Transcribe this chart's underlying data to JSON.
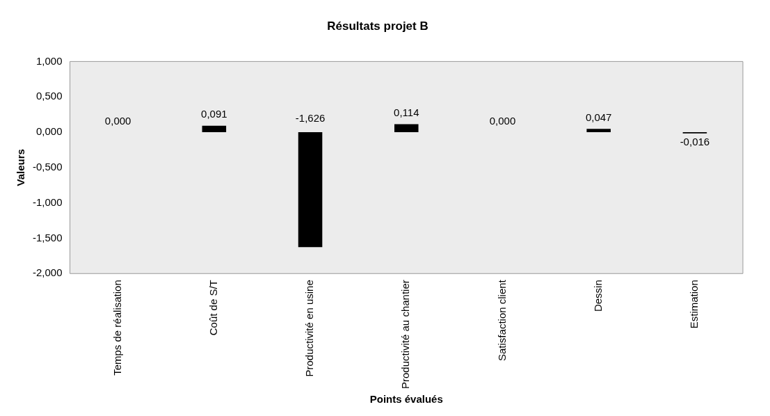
{
  "chart_data": {
    "type": "bar",
    "title": "Résultats projet B",
    "xlabel": "Points évalués",
    "ylabel": "Valeurs",
    "categories": [
      "Temps de réalisation",
      "Coût de S/T",
      "Productivité en usine",
      "Productivité au chantier",
      "Satisfaction client",
      "Dessin",
      "Estimation"
    ],
    "values": [
      0,
      0.091,
      -1.626,
      0.114,
      0,
      0.047,
      -0.016
    ],
    "value_labels": [
      "0,000",
      "0,091",
      "-1,626",
      "0,114",
      "0,000",
      "0,047",
      "-0,016"
    ],
    "color": "#000000",
    "ylim": [
      -2,
      1
    ],
    "yticks": [
      {
        "value": -2,
        "label": "-2,000"
      },
      {
        "value": -1.5,
        "label": "-1,500"
      },
      {
        "value": -1,
        "label": "-1,000"
      },
      {
        "value": -0.5,
        "label": "-0,500"
      },
      {
        "value": 0,
        "label": "0,000"
      },
      {
        "value": 0.5,
        "label": "0,500"
      },
      {
        "value": 1,
        "label": "1,000"
      }
    ],
    "grid": false,
    "legend": false
  }
}
